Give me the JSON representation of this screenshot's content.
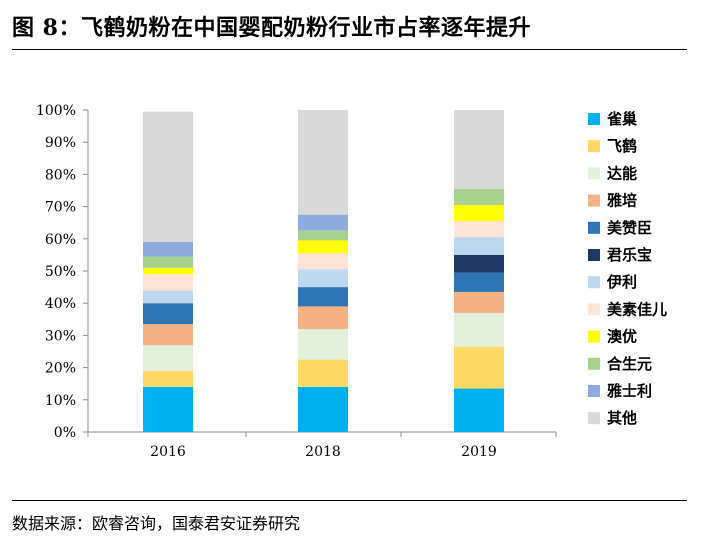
{
  "header": {
    "figure_title": "图 8：飞鹤奶粉在中国婴配奶粉行业市占率逐年提升"
  },
  "source": {
    "text": "数据来源：欧睿咨询，国泰君安证券研究"
  },
  "chart_data": {
    "type": "bar",
    "stacked": true,
    "title": "飞鹤奶粉在中国婴配奶粉行业市占率逐年提升",
    "xlabel": "",
    "ylabel": "",
    "ylim": [
      0,
      100
    ],
    "y_unit": "%",
    "y_ticks": [
      "0%",
      "10%",
      "20%",
      "30%",
      "40%",
      "50%",
      "60%",
      "70%",
      "80%",
      "90%",
      "100%"
    ],
    "categories": [
      "2016",
      "2018",
      "2019"
    ],
    "legend_position": "right",
    "series": [
      {
        "name": "雀巢",
        "color": "#00b0f0",
        "values": [
          14,
          14,
          13.5
        ]
      },
      {
        "name": "飞鹤",
        "color": "#ffd966",
        "values": [
          5,
          8.5,
          13
        ]
      },
      {
        "name": "达能",
        "color": "#e2efda",
        "values": [
          8,
          9.5,
          10.5
        ]
      },
      {
        "name": "雅培",
        "color": "#f4b183",
        "values": [
          6.5,
          7,
          6.5
        ]
      },
      {
        "name": "美赞臣",
        "color": "#2e75b6",
        "values": [
          6.5,
          6,
          6
        ]
      },
      {
        "name": "君乐宝",
        "color": "#1f3864",
        "values": [
          0,
          0,
          5.5
        ]
      },
      {
        "name": "伊利",
        "color": "#bdd7ee",
        "values": [
          4,
          5.5,
          5.5
        ]
      },
      {
        "name": "美素佳儿",
        "color": "#fce4d6",
        "values": [
          5,
          5,
          5
        ]
      },
      {
        "name": "澳优",
        "color": "#ffff00",
        "values": [
          2,
          4,
          5
        ]
      },
      {
        "name": "合生元",
        "color": "#a9d18e",
        "values": [
          3.5,
          3,
          5
        ]
      },
      {
        "name": "雅士利",
        "color": "#8faadc",
        "values": [
          4.5,
          5,
          0
        ]
      },
      {
        "name": "其他",
        "color": "#d9d9d9",
        "values": [
          40.5,
          32.5,
          24.5
        ]
      }
    ]
  }
}
